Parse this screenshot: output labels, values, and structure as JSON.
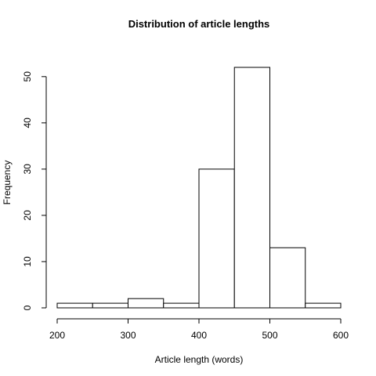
{
  "chart_data": {
    "type": "bar",
    "title": "Distribution of article lengths",
    "xlabel": "Article length (words)",
    "ylabel": "Frequency",
    "bins": [
      {
        "start": 200,
        "end": 250,
        "count": 1
      },
      {
        "start": 250,
        "end": 300,
        "count": 1
      },
      {
        "start": 300,
        "end": 350,
        "count": 2
      },
      {
        "start": 350,
        "end": 400,
        "count": 1
      },
      {
        "start": 400,
        "end": 450,
        "count": 30
      },
      {
        "start": 450,
        "end": 500,
        "count": 52
      },
      {
        "start": 500,
        "end": 550,
        "count": 13
      },
      {
        "start": 550,
        "end": 600,
        "count": 1
      }
    ],
    "xlim": [
      200,
      600
    ],
    "ylim": [
      0,
      52
    ],
    "xticks": [
      200,
      300,
      400,
      500,
      600
    ],
    "yticks": [
      0,
      10,
      20,
      30,
      40,
      50
    ],
    "grid": false,
    "legend": "none",
    "colors": {
      "bar_fill": "#ffffff",
      "bar_stroke": "#000000"
    }
  }
}
